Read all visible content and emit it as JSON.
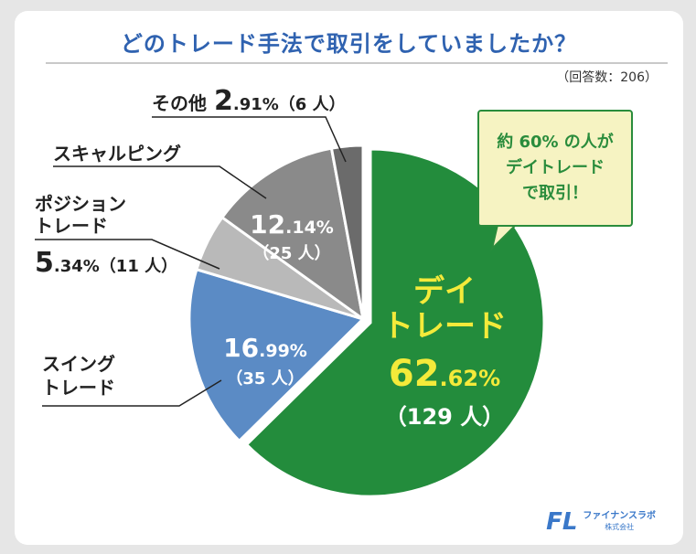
{
  "title": "どのトレード手法で取引をしていましたか？",
  "sample": "（回答数：206）",
  "callout": {
    "line1": "約 60% の人が",
    "line2": "デイトレード",
    "line3": "で取引！"
  },
  "logo": {
    "mark": "FL",
    "name": "ファイナンスラボ",
    "sub": "株式会社"
  },
  "colors": {
    "day": "#238c3c",
    "swing": "#5b8bc5",
    "position": "#b9b9b9",
    "scalping": "#8a8a8a",
    "other": "#6b6b6b"
  },
  "chart_data": {
    "type": "pie",
    "title": "どのトレード手法で取引をしていましたか？",
    "total": 206,
    "slices": [
      {
        "key": "day",
        "name": "デイトレード",
        "name_lines": [
          "デイ",
          "トレード"
        ],
        "pct_int": "62",
        "pct_dec": ".62%",
        "value": 62.62,
        "count": "（129 人）"
      },
      {
        "key": "swing",
        "name": "スイングトレード",
        "name_lines": [
          "スイング",
          "トレード"
        ],
        "pct_int": "16",
        "pct_dec": ".99%",
        "value": 16.99,
        "count": "（35 人）"
      },
      {
        "key": "position",
        "name": "ポジショントレード",
        "name_lines": [
          "ポジション",
          "トレード"
        ],
        "pct_int": "5",
        "pct_dec": ".34%",
        "value": 5.34,
        "count": "（11 人）"
      },
      {
        "key": "scalping",
        "name": "スキャルピング",
        "name_lines": [
          "スキャルピング"
        ],
        "pct_int": "12",
        "pct_dec": ".14%",
        "value": 12.14,
        "count": "（25 人）"
      },
      {
        "key": "other",
        "name": "その他",
        "name_lines": [
          "その他"
        ],
        "pct_int": "2",
        "pct_dec": ".91%",
        "value": 2.91,
        "count": "（6 人）"
      }
    ]
  }
}
